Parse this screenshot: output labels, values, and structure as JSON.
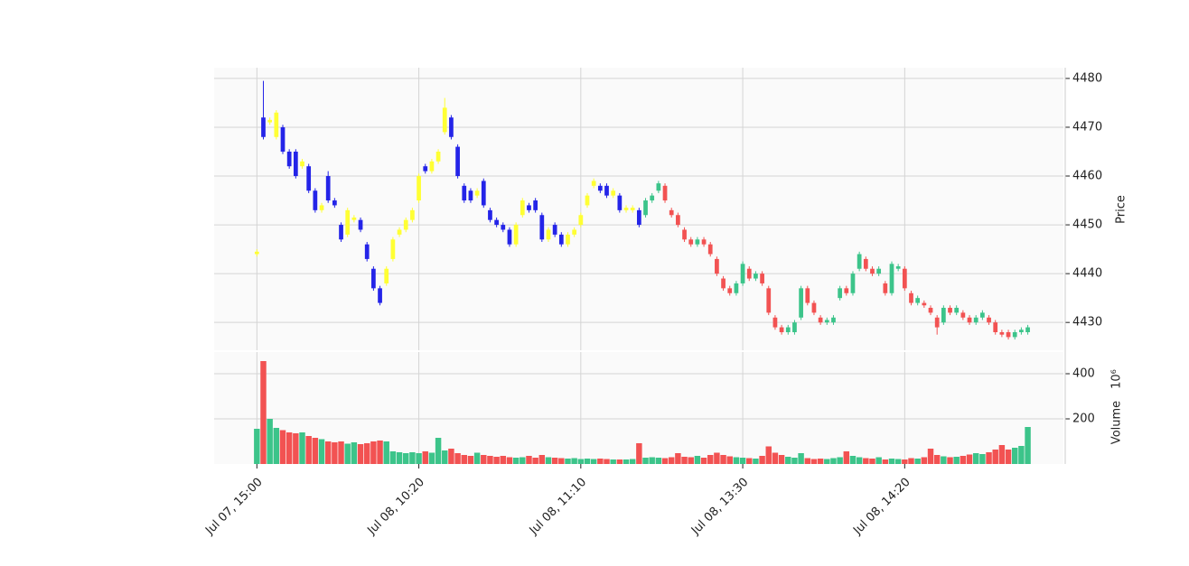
{
  "chart_data": {
    "type": "candlestick",
    "y_label": "Price",
    "y2_label": "Volume",
    "y2_offset_label": "10⁶",
    "categories": [
      "Jul 07, 15:00",
      null,
      null,
      null,
      null,
      null,
      null,
      null,
      null,
      null,
      null,
      null,
      null,
      null,
      null,
      null,
      null,
      null,
      null,
      null,
      null,
      null,
      null,
      null,
      null,
      "Jul 08, 10:20",
      null,
      null,
      null,
      null,
      null,
      null,
      null,
      null,
      null,
      null,
      null,
      null,
      null,
      null,
      null,
      null,
      null,
      null,
      null,
      null,
      null,
      null,
      null,
      null,
      "Jul 08, 11:10",
      null,
      null,
      null,
      null,
      null,
      null,
      null,
      null,
      null,
      null,
      null,
      null,
      null,
      null,
      null,
      null,
      null,
      null,
      null,
      null,
      null,
      null,
      null,
      null,
      "Jul 08, 13:30",
      null,
      null,
      null,
      null,
      null,
      null,
      null,
      null,
      null,
      null,
      null,
      null,
      null,
      null,
      null,
      null,
      null,
      null,
      null,
      null,
      null,
      null,
      null,
      null,
      "Jul 08, 14:20",
      null,
      null,
      null,
      null,
      null,
      null,
      null,
      null,
      null,
      null,
      null,
      null,
      null,
      null,
      null,
      null,
      null,
      null,
      null
    ],
    "open": [
      4444,
      4472,
      4471,
      4468,
      4470,
      4465,
      4465,
      4462,
      4462,
      4457,
      4453,
      4460,
      4455,
      4450,
      4448,
      4451,
      4451,
      4446,
      4441,
      4437,
      4438,
      4443,
      4448,
      4449,
      4451,
      4455,
      4462,
      4461,
      4463,
      4469,
      4472,
      4466,
      4458,
      4457,
      4456,
      4459,
      4453,
      4451,
      4450,
      4449,
      4446,
      4452,
      4454,
      4455,
      4452,
      4447,
      4450,
      4448,
      4446,
      4448,
      4450,
      4454,
      4458,
      4458,
      4458,
      4456,
      4456,
      4453,
      4453,
      4453,
      4452,
      4455,
      4457,
      4458,
      4453,
      4452,
      4449,
      4447,
      4446,
      4447,
      4446,
      4443,
      4439,
      4437,
      4436,
      4438,
      4441,
      4439,
      4440,
      4437,
      4431,
      4429,
      4428,
      4428,
      4431,
      4437,
      4434,
      4431,
      4430,
      4430,
      4435,
      4437,
      4436,
      4441,
      4443,
      4441,
      4440,
      4438,
      4436,
      4441,
      4441,
      4436,
      4434,
      4434,
      4433,
      4431,
      4430,
      4433,
      4432,
      4432,
      4431,
      4430,
      4431,
      4431,
      4430,
      4428,
      4428,
      4427,
      4428,
      4428
    ],
    "high": [
      4445,
      4479.5,
      4472,
      4473.5,
      4470.5,
      4465.5,
      4465.5,
      4463.5,
      4462.5,
      4457.5,
      4454.5,
      4461,
      4455.5,
      4450.5,
      4453.5,
      4452,
      4451.5,
      4446.5,
      4441.5,
      4437.5,
      4441.5,
      4447.5,
      4449.5,
      4451.5,
      4453.5,
      4460.5,
      4462.5,
      4463.5,
      4465.5,
      4476,
      4472.5,
      4466.5,
      4458.5,
      4457.5,
      4457.5,
      4459.5,
      4453.5,
      4451.5,
      4450.5,
      4449.5,
      4450.5,
      4455.5,
      4454.5,
      4455.5,
      4452.5,
      4449.5,
      4450.5,
      4448.5,
      4448.5,
      4449.5,
      4452.5,
      4456.5,
      4459.5,
      4458.5,
      4458.5,
      4457.5,
      4456.5,
      4454,
      4454,
      4453.5,
      4455.5,
      4456.5,
      4459,
      4458.5,
      4453.5,
      4452.5,
      4449.5,
      4447.5,
      4447.5,
      4447.5,
      4446.5,
      4443.5,
      4439.5,
      4437.5,
      4438.5,
      4442.5,
      4441.5,
      4440.5,
      4440.5,
      4437.5,
      4431.5,
      4429.5,
      4429.5,
      4430.5,
      4437.5,
      4437.5,
      4434.5,
      4431.5,
      4431,
      4431.5,
      4437.5,
      4437.5,
      4440.5,
      4444.5,
      4443.5,
      4441.5,
      4441.5,
      4438.5,
      4442.5,
      4442,
      4441.5,
      4436.5,
      4435.5,
      4434.5,
      4433.5,
      4431.5,
      4433.5,
      4433.5,
      4433.5,
      4432.5,
      4431.5,
      4431.5,
      4432.5,
      4431.5,
      4430.5,
      4428.5,
      4428.5,
      4428.5,
      4429,
      4429.5
    ],
    "low": [
      4443.5,
      4467.5,
      4470.5,
      4467.5,
      4464.5,
      4461.5,
      4459.5,
      4461.5,
      4456.5,
      4452.5,
      4452.5,
      4454.5,
      4453.5,
      4446.5,
      4447.5,
      4450.5,
      4448.5,
      4442.5,
      4436.5,
      4433.5,
      4437.5,
      4442.5,
      4447.5,
      4448.5,
      4450.5,
      4454.5,
      4460.5,
      4460.5,
      4462.5,
      4468.5,
      4467.5,
      4459.5,
      4454.5,
      4454.5,
      4455.5,
      4453.5,
      4450.5,
      4449.5,
      4448.5,
      4445.5,
      4445.5,
      4451.5,
      4452.5,
      4452.5,
      4446.5,
      4446.5,
      4447.5,
      4445.5,
      4445.5,
      4447.5,
      4449.5,
      4453.5,
      4457.5,
      4456.5,
      4455.5,
      4455.5,
      4452.5,
      4452.5,
      4452.5,
      4449.5,
      4451.5,
      4454.5,
      4456.5,
      4454.5,
      4451.5,
      4449.5,
      4446.5,
      4445.5,
      4445.5,
      4445.5,
      4443.5,
      4439.5,
      4436.5,
      4435.5,
      4435.5,
      4437.5,
      4438.5,
      4438.5,
      4437.5,
      4431.5,
      4428.5,
      4427.5,
      4427.5,
      4427.5,
      4430.5,
      4433.5,
      4431.5,
      4429.5,
      4429.5,
      4429.5,
      4434.5,
      4435.5,
      4435.5,
      4440.5,
      4440.5,
      4439.5,
      4439.5,
      4435.5,
      4435.5,
      4440.5,
      4436.5,
      4433.5,
      4433.5,
      4433,
      4431.5,
      4427.5,
      4429.5,
      4431.5,
      4431.5,
      4430.5,
      4429.5,
      4429.5,
      4430.5,
      4429.5,
      4427.5,
      4427,
      4426.5,
      4426.5,
      4427.5,
      4427.5
    ],
    "close": [
      4444.5,
      4468,
      4471.5,
      4473,
      4465,
      4462,
      4460,
      4463,
      4457,
      4453,
      4454,
      4455,
      4454,
      4447,
      4453,
      4451.5,
      4449,
      4443,
      4437,
      4434,
      4441,
      4447,
      4449,
      4451,
      4453,
      4460,
      4461,
      4463,
      4465,
      4474,
      4468,
      4460,
      4455,
      4455,
      4457,
      4454,
      4451,
      4450,
      4449,
      4446,
      4450,
      4455,
      4453,
      4453,
      4447,
      4449,
      4448,
      4446,
      4448,
      4449,
      4452,
      4456,
      4459,
      4457,
      4456,
      4457,
      4453,
      4453.5,
      4453.5,
      4450,
      4455,
      4456,
      4458.5,
      4455,
      4452,
      4450,
      4447,
      4446,
      4447,
      4446,
      4444,
      4440,
      4437,
      4436,
      4438,
      4442,
      4439,
      4440,
      4438,
      4432,
      4429,
      4428,
      4429,
      4430,
      4437,
      4434,
      4432,
      4430,
      4430.5,
      4431,
      4437,
      4436,
      4440,
      4444,
      4441,
      4440,
      4441,
      4436,
      4442,
      4441.5,
      4437,
      4434,
      4435,
      4433.5,
      4432,
      4429,
      4433,
      4432,
      4433,
      4431,
      4430,
      4431,
      4432,
      4430,
      4428,
      4427.5,
      4427,
      4428,
      4428.5,
      4429
    ],
    "volume": [
      156,
      456,
      200,
      160,
      150,
      140,
      136,
      140,
      124,
      116,
      110,
      100,
      96,
      100,
      90,
      96,
      88,
      92,
      100,
      104,
      100,
      56,
      52,
      48,
      52,
      48,
      56,
      50,
      116,
      60,
      68,
      48,
      40,
      36,
      50,
      40,
      36,
      32,
      36,
      30,
      28,
      30,
      36,
      28,
      40,
      30,
      28,
      26,
      24,
      26,
      22,
      24,
      22,
      24,
      22,
      20,
      20,
      20,
      22,
      92,
      28,
      30,
      28,
      26,
      30,
      48,
      32,
      30,
      36,
      28,
      40,
      50,
      40,
      34,
      30,
      28,
      26,
      24,
      36,
      78,
      50,
      40,
      32,
      28,
      48,
      26,
      22,
      24,
      22,
      26,
      30,
      56,
      36,
      30,
      26,
      24,
      30,
      20,
      24,
      22,
      20,
      26,
      24,
      30,
      68,
      40,
      34,
      30,
      32,
      36,
      42,
      48,
      44,
      52,
      64,
      84,
      64,
      72,
      80,
      164
    ],
    "color_schemes": [
      {
        "first": 0,
        "up": "#ffff33",
        "down": "#2424e8"
      },
      {
        "first": 60,
        "up": "#3cc48a",
        "down": "#f25252"
      }
    ],
    "volume_colors": {
      "up": "#3cc48a",
      "down": "#f25252"
    },
    "xlim": [
      -6.6,
      124.5
    ],
    "ylim": [
      4424.3,
      4482.2
    ],
    "yticks": [
      4430,
      4440,
      4450,
      4460,
      4470,
      4480
    ],
    "y2lim": [
      0,
      496
    ],
    "y2ticks": [
      200,
      400
    ],
    "grid": true
  }
}
